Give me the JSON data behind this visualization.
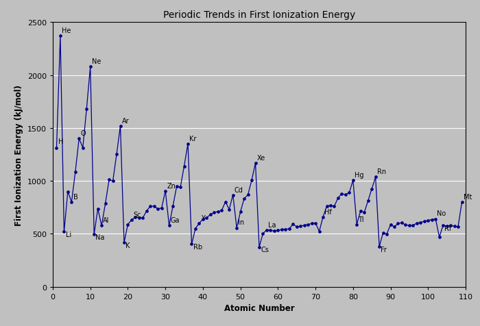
{
  "title": "Periodic Trends in First Ionization Energy",
  "xlabel": "Atomic Number",
  "ylabel": "First Ionization Energy (kJ/mol)",
  "xlim": [
    0,
    110
  ],
  "ylim": [
    0,
    2500
  ],
  "yticks": [
    0,
    500,
    1000,
    1500,
    2000,
    2500
  ],
  "xticks": [
    0,
    10,
    20,
    30,
    40,
    50,
    60,
    70,
    80,
    90,
    100,
    110
  ],
  "line_color": "#00008B",
  "marker_color": "#00008B",
  "bg_color": "#C0C0C0",
  "fig_bg_color": "#C0C0C0",
  "title_fontsize": 10,
  "axis_label_fontsize": 8.5,
  "tick_fontsize": 8,
  "data": [
    [
      1,
      1312
    ],
    [
      2,
      2372
    ],
    [
      3,
      520
    ],
    [
      4,
      900
    ],
    [
      5,
      801
    ],
    [
      6,
      1086
    ],
    [
      7,
      1402
    ],
    [
      8,
      1314
    ],
    [
      9,
      1681
    ],
    [
      10,
      2081
    ],
    [
      11,
      496
    ],
    [
      12,
      738
    ],
    [
      13,
      578
    ],
    [
      14,
      786
    ],
    [
      15,
      1012
    ],
    [
      16,
      1000
    ],
    [
      17,
      1251
    ],
    [
      18,
      1521
    ],
    [
      19,
      419
    ],
    [
      20,
      590
    ],
    [
      21,
      633
    ],
    [
      22,
      659
    ],
    [
      23,
      651
    ],
    [
      24,
      653
    ],
    [
      25,
      717
    ],
    [
      26,
      762
    ],
    [
      27,
      760
    ],
    [
      28,
      737
    ],
    [
      29,
      745
    ],
    [
      30,
      906
    ],
    [
      31,
      579
    ],
    [
      32,
      762
    ],
    [
      33,
      947
    ],
    [
      34,
      941
    ],
    [
      35,
      1140
    ],
    [
      36,
      1351
    ],
    [
      37,
      403
    ],
    [
      38,
      550
    ],
    [
      39,
      600
    ],
    [
      40,
      640
    ],
    [
      41,
      652
    ],
    [
      42,
      684
    ],
    [
      43,
      702
    ],
    [
      44,
      711
    ],
    [
      45,
      720
    ],
    [
      46,
      804
    ],
    [
      47,
      731
    ],
    [
      48,
      868
    ],
    [
      49,
      558
    ],
    [
      50,
      709
    ],
    [
      51,
      834
    ],
    [
      52,
      869
    ],
    [
      53,
      1008
    ],
    [
      54,
      1170
    ],
    [
      55,
      376
    ],
    [
      56,
      503
    ],
    [
      57,
      538
    ],
    [
      58,
      534
    ],
    [
      59,
      527
    ],
    [
      60,
      533
    ],
    [
      61,
      540
    ],
    [
      62,
      545
    ],
    [
      63,
      547
    ],
    [
      64,
      593
    ],
    [
      65,
      566
    ],
    [
      66,
      573
    ],
    [
      67,
      581
    ],
    [
      68,
      589
    ],
    [
      69,
      597
    ],
    [
      70,
      603
    ],
    [
      71,
      524
    ],
    [
      72,
      659
    ],
    [
      73,
      761
    ],
    [
      74,
      770
    ],
    [
      75,
      760
    ],
    [
      76,
      840
    ],
    [
      77,
      880
    ],
    [
      78,
      870
    ],
    [
      79,
      890
    ],
    [
      80,
      1007
    ],
    [
      81,
      589
    ],
    [
      82,
      716
    ],
    [
      83,
      703
    ],
    [
      84,
      812
    ],
    [
      85,
      926
    ],
    [
      86,
      1037
    ],
    [
      87,
      380
    ],
    [
      88,
      509
    ],
    [
      89,
      499
    ],
    [
      90,
      587
    ],
    [
      91,
      568
    ],
    [
      92,
      598
    ],
    [
      93,
      605
    ],
    [
      94,
      585
    ],
    [
      95,
      578
    ],
    [
      96,
      581
    ],
    [
      97,
      601
    ],
    [
      98,
      608
    ],
    [
      99,
      619
    ],
    [
      100,
      627
    ],
    [
      101,
      635
    ],
    [
      102,
      642
    ],
    [
      103,
      470
    ],
    [
      104,
      580
    ],
    [
      105,
      575
    ],
    [
      106,
      578
    ],
    [
      107,
      572
    ],
    [
      108,
      569
    ],
    [
      109,
      800
    ]
  ],
  "labels": {
    "1": [
      "H",
      0.4,
      30
    ],
    "2": [
      "He",
      0.4,
      20
    ],
    "3": [
      "Li",
      0.4,
      -55
    ],
    "5": [
      "B",
      0.4,
      20
    ],
    "7": [
      "O",
      0.4,
      20
    ],
    "10": [
      "Ne",
      0.4,
      20
    ],
    "11": [
      "Na",
      0.4,
      -55
    ],
    "13": [
      "Al",
      0.4,
      20
    ],
    "18": [
      "Ar",
      0.4,
      20
    ],
    "19": [
      "K",
      0.4,
      -55
    ],
    "21": [
      "Sc",
      0.4,
      20
    ],
    "30": [
      "Zn",
      0.4,
      20
    ],
    "31": [
      "Ga",
      0.4,
      20
    ],
    "36": [
      "Kr",
      0.4,
      20
    ],
    "37": [
      "Rb",
      0.4,
      -55
    ],
    "39": [
      "Y",
      0.4,
      20
    ],
    "48": [
      "Cd",
      0.4,
      20
    ],
    "49": [
      "In",
      0.4,
      20
    ],
    "54": [
      "Xe",
      0.4,
      20
    ],
    "55": [
      "Cs",
      0.4,
      -55
    ],
    "57": [
      "La",
      0.4,
      20
    ],
    "72": [
      "Hf",
      0.4,
      20
    ],
    "80": [
      "Hg",
      0.4,
      20
    ],
    "81": [
      "Tl",
      0.4,
      20
    ],
    "86": [
      "Rn",
      0.4,
      20
    ],
    "87": [
      "Fr",
      0.4,
      -55
    ],
    "102": [
      "No",
      0.4,
      20
    ],
    "104": [
      "Rf",
      0.4,
      -55
    ],
    "109": [
      "Mt",
      0.4,
      20
    ]
  }
}
